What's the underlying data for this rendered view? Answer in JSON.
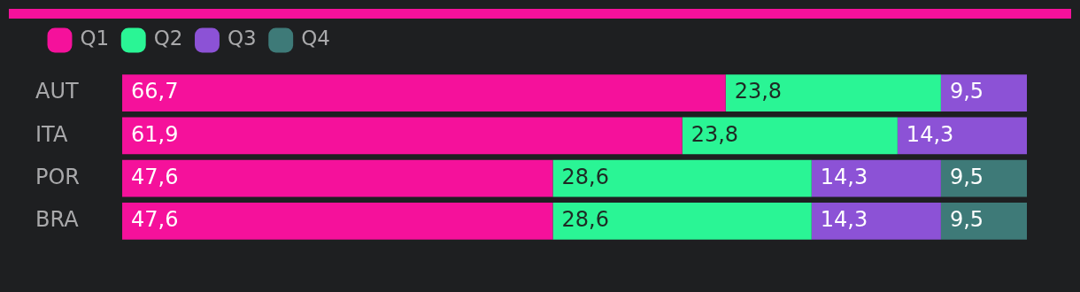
{
  "chart_data": {
    "type": "bar",
    "orientation": "horizontal",
    "stacked": true,
    "categories": [
      "AUT",
      "ITA",
      "POR",
      "BRA"
    ],
    "xlim": [
      0,
      100
    ],
    "tick_labels": "y",
    "legend": "top left",
    "series": [
      {
        "name": "Q1",
        "color": "#f5119b",
        "values": [
          66.7,
          61.9,
          47.6,
          47.6
        ],
        "value_labels": [
          "66,7",
          "61,9",
          "47,6",
          "47,6"
        ]
      },
      {
        "name": "Q2",
        "color": "#2af595",
        "values": [
          23.8,
          23.8,
          28.6,
          28.6
        ],
        "value_labels": [
          "23,8",
          "23,8",
          "28,6",
          "28,6"
        ]
      },
      {
        "name": "Q3",
        "color": "#8c52d6",
        "values": [
          9.5,
          14.3,
          14.3,
          14.3
        ],
        "value_labels": [
          "9,5",
          "14,3",
          "14,3",
          "14,3"
        ]
      },
      {
        "name": "Q4",
        "color": "#3e7a78",
        "values": [
          null,
          null,
          9.5,
          9.5
        ],
        "value_labels": [
          null,
          null,
          "9,5",
          "9,5"
        ]
      }
    ]
  }
}
